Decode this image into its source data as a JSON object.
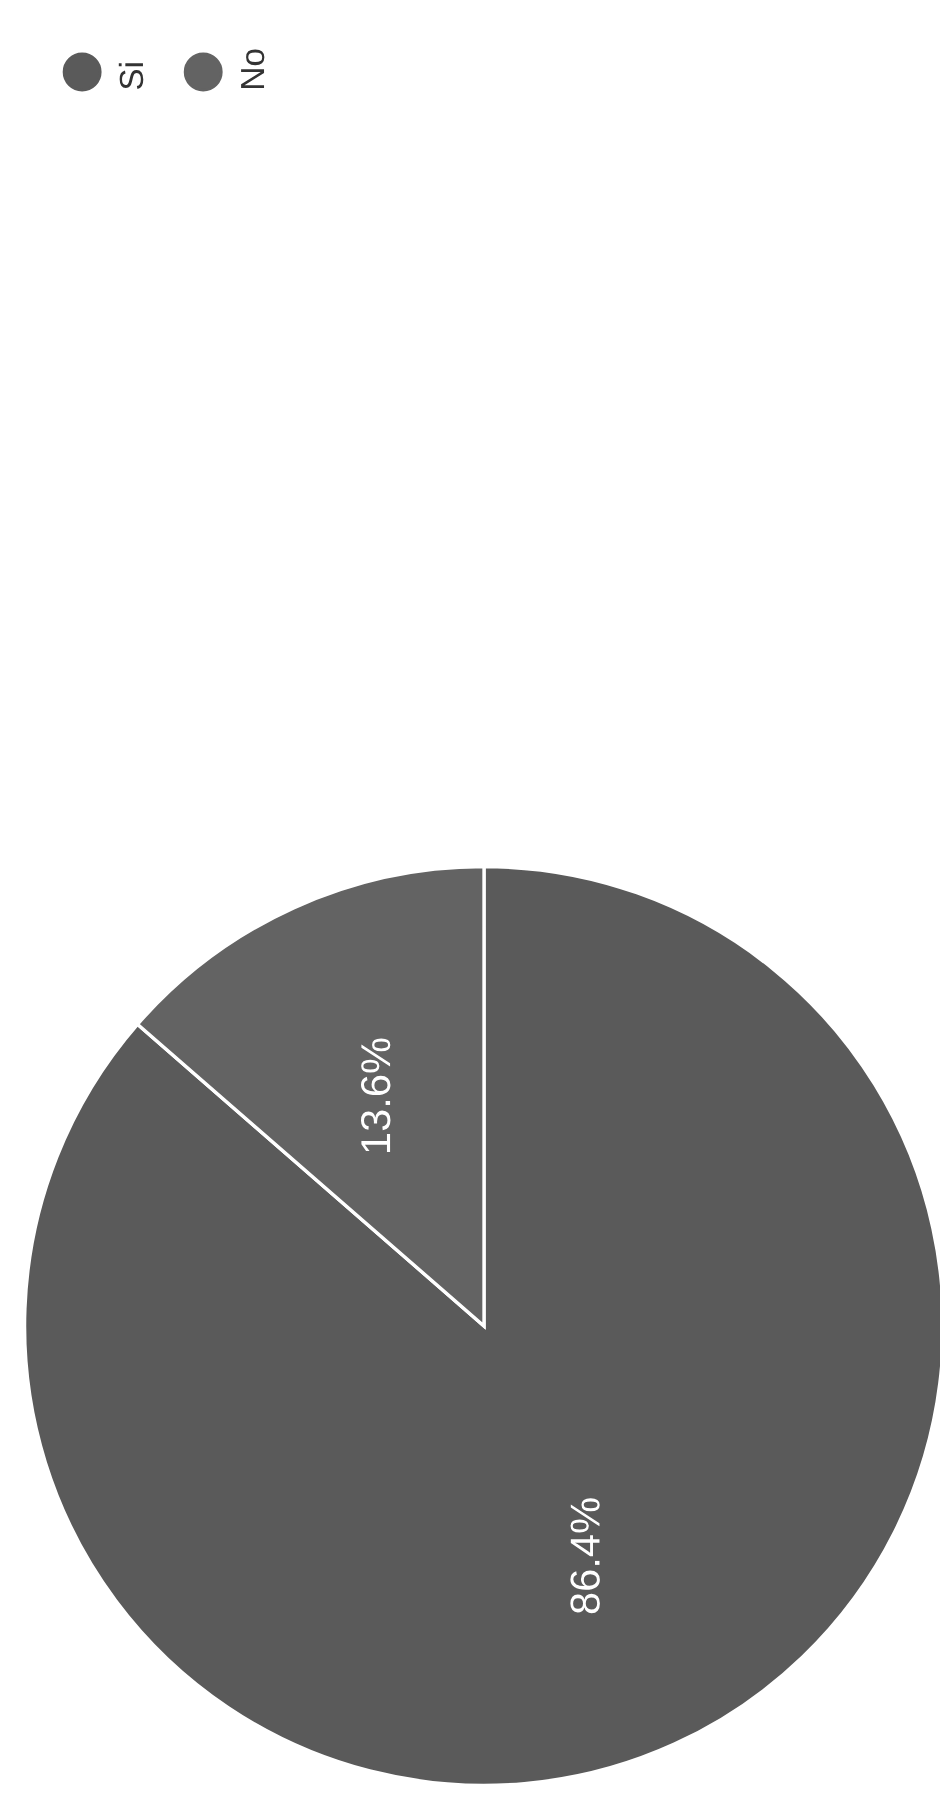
{
  "chart_data": {
    "type": "pie",
    "categories": [
      "Si",
      "No"
    ],
    "values": [
      86.4,
      13.6
    ],
    "colors": [
      "#5a5a5a",
      "#636363"
    ],
    "value_labels": [
      "86.4%",
      "13.6%"
    ],
    "legend": "top left"
  }
}
